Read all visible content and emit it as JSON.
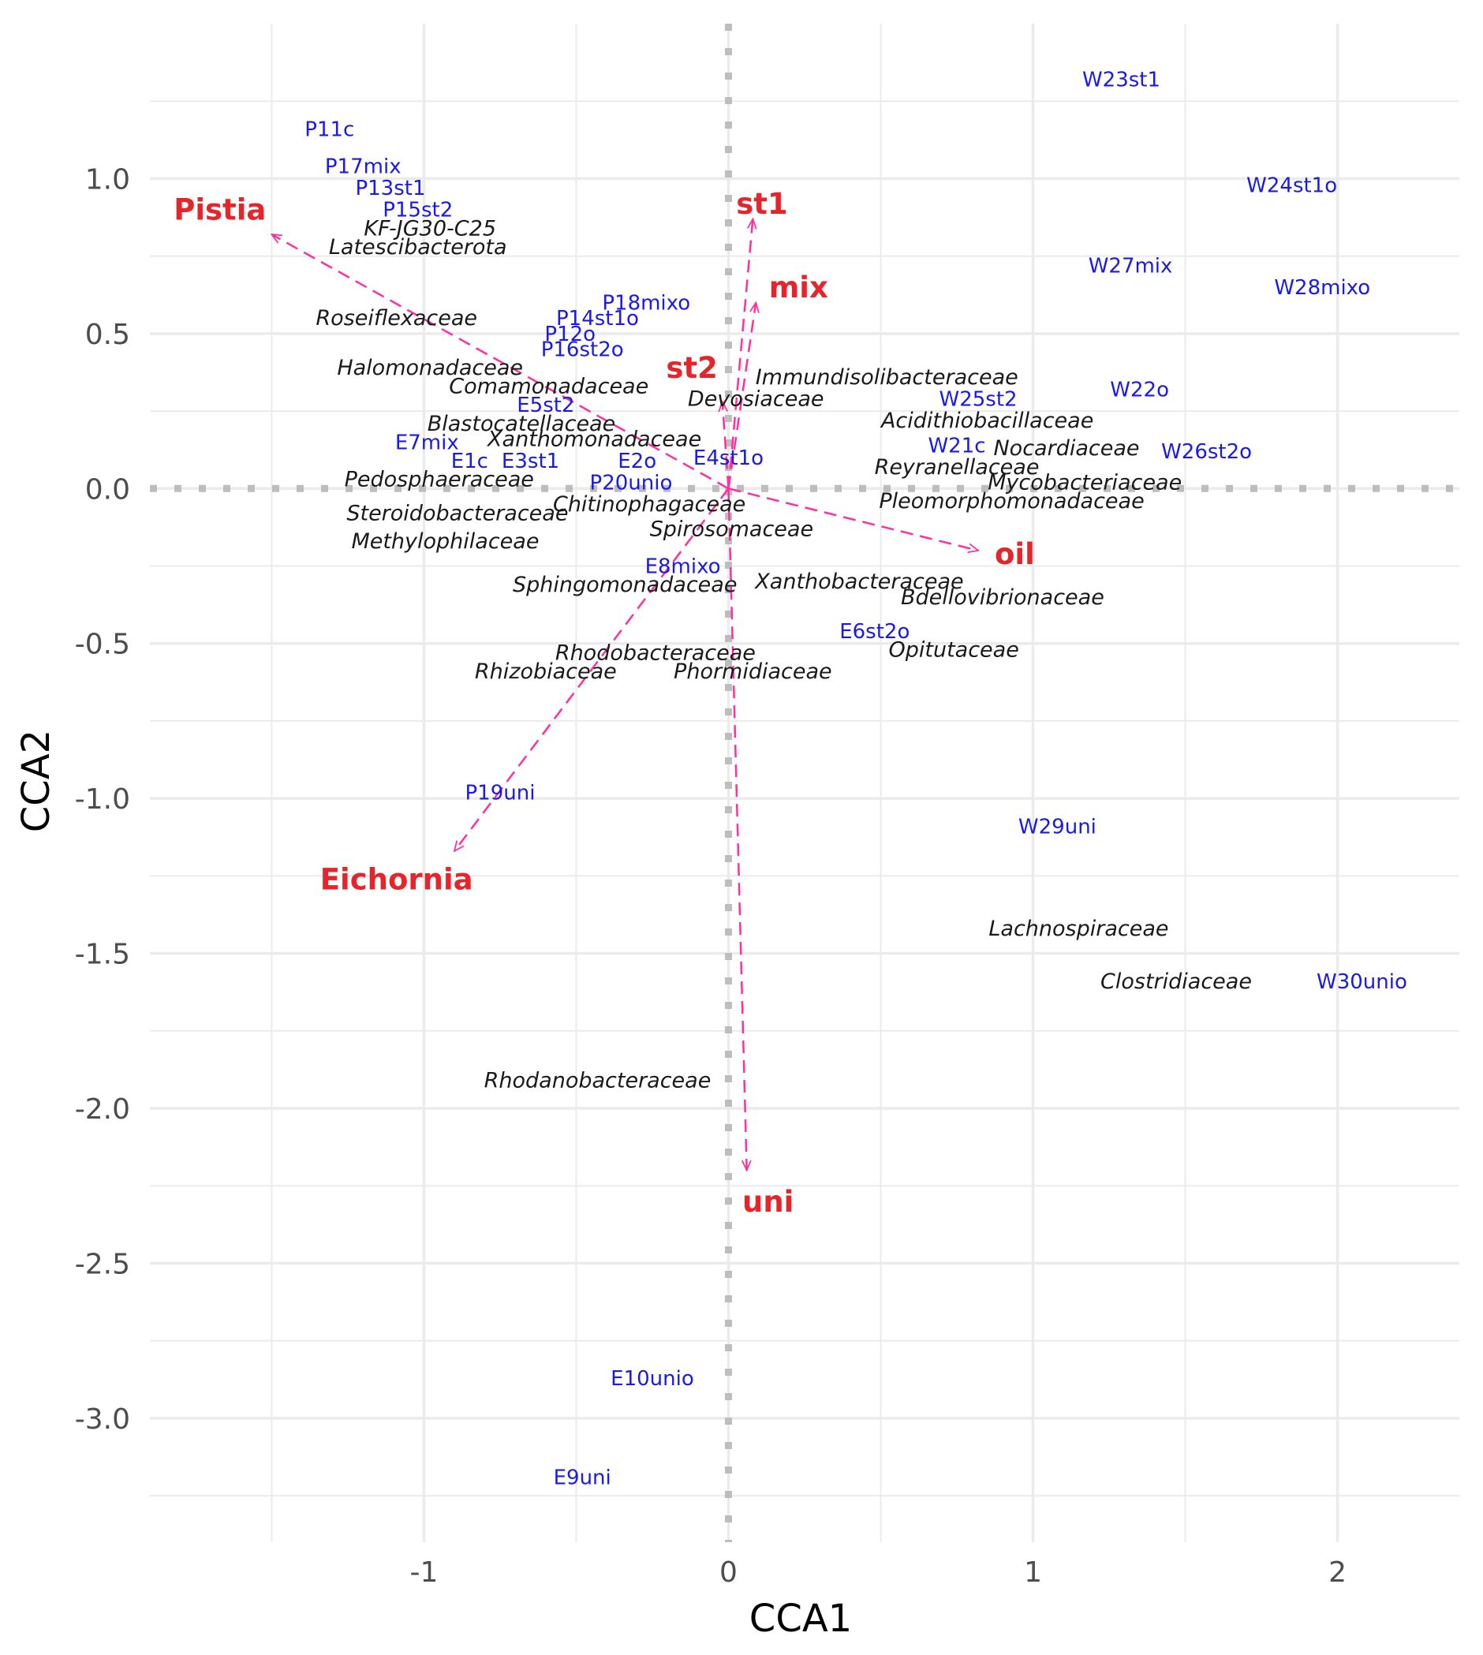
{
  "chart_data": {
    "type": "scatter",
    "xlabel": "CCA1",
    "ylabel": "CCA2",
    "xlim": [
      -1.9,
      2.4
    ],
    "ylim": [
      -3.4,
      1.5
    ],
    "x_ticks": [
      -1,
      0,
      1,
      2
    ],
    "x_tick_labels": [
      "-1",
      "0",
      "1",
      "2"
    ],
    "y_ticks": [
      1.0,
      0.5,
      0.0,
      -0.5,
      -1.0,
      -1.5,
      -2.0,
      -2.5,
      -3.0
    ],
    "y_tick_labels": [
      "1.0",
      "0.5",
      "0.0",
      "-0.5",
      "-1.0",
      "-1.5",
      "-2.0",
      "-2.5",
      "-3.0"
    ],
    "grid": true,
    "reference_lines": {
      "x": 0,
      "y": 0,
      "style": "dotted"
    },
    "colors": {
      "sites": "#1a1ae6",
      "families": "#1a1a1a",
      "vectors": "#e8242b",
      "arrows": "#ff2fa0",
      "grid": "#ebebeb",
      "ref": "#bdbdbd"
    },
    "sites": [
      {
        "label": "W23st1",
        "x": 1.29,
        "y": 1.32
      },
      {
        "label": "P11c",
        "x": -1.31,
        "y": 1.16
      },
      {
        "label": "P17mix",
        "x": -1.2,
        "y": 1.04
      },
      {
        "label": "W24st1o",
        "x": 1.85,
        "y": 0.98
      },
      {
        "label": "P13st1",
        "x": -1.11,
        "y": 0.97
      },
      {
        "label": "P15st2",
        "x": -1.02,
        "y": 0.9
      },
      {
        "label": "W27mix",
        "x": 1.32,
        "y": 0.72
      },
      {
        "label": "W28mixo",
        "x": 1.95,
        "y": 0.65
      },
      {
        "label": "P18mixo",
        "x": -0.27,
        "y": 0.6
      },
      {
        "label": "P14st1o",
        "x": -0.43,
        "y": 0.55
      },
      {
        "label": "P12o",
        "x": -0.52,
        "y": 0.5
      },
      {
        "label": "P16st2o",
        "x": -0.48,
        "y": 0.45
      },
      {
        "label": "W22o",
        "x": 1.35,
        "y": 0.32
      },
      {
        "label": "W25st2",
        "x": 0.82,
        "y": 0.29
      },
      {
        "label": "E5st2",
        "x": -0.6,
        "y": 0.27
      },
      {
        "label": "W21c",
        "x": 0.75,
        "y": 0.14
      },
      {
        "label": "E7mix",
        "x": -0.99,
        "y": 0.15
      },
      {
        "label": "W26st2o",
        "x": 1.57,
        "y": 0.12
      },
      {
        "label": "E1c",
        "x": -0.85,
        "y": 0.09
      },
      {
        "label": "E3st1",
        "x": -0.65,
        "y": 0.09
      },
      {
        "label": "E2o",
        "x": -0.3,
        "y": 0.09
      },
      {
        "label": "E4st1o",
        "x": 0.0,
        "y": 0.1
      },
      {
        "label": "P20unio",
        "x": -0.32,
        "y": 0.02
      },
      {
        "label": "E8mixo",
        "x": -0.15,
        "y": -0.25
      },
      {
        "label": "E6st2o",
        "x": 0.48,
        "y": -0.46
      },
      {
        "label": "P19uni",
        "x": -0.75,
        "y": -0.98
      },
      {
        "label": "W29uni",
        "x": 1.08,
        "y": -1.09
      },
      {
        "label": "W30unio",
        "x": 2.08,
        "y": -1.59
      },
      {
        "label": "E10unio",
        "x": -0.25,
        "y": -2.87
      },
      {
        "label": "E9uni",
        "x": -0.48,
        "y": -3.19
      }
    ],
    "families": [
      {
        "label": "KF-JG30-C25",
        "x": -0.98,
        "y": 0.84
      },
      {
        "label": "Latescibacterota",
        "x": -1.02,
        "y": 0.78
      },
      {
        "label": "Roseiflexaceae",
        "x": -1.09,
        "y": 0.55
      },
      {
        "label": "Halomonadaceae",
        "x": -0.98,
        "y": 0.39
      },
      {
        "label": "Immundisolibacteraceae",
        "x": 0.52,
        "y": 0.36
      },
      {
        "label": "Comamonadaceae",
        "x": -0.59,
        "y": 0.33
      },
      {
        "label": "Devosiaceae",
        "x": 0.09,
        "y": 0.29
      },
      {
        "label": "Acidithiobacillaceae",
        "x": 0.85,
        "y": 0.22
      },
      {
        "label": "Blastocatellaceae",
        "x": -0.68,
        "y": 0.21
      },
      {
        "label": "Xanthomonadaceae",
        "x": -0.44,
        "y": 0.16
      },
      {
        "label": "Nocardiaceae",
        "x": 1.11,
        "y": 0.13
      },
      {
        "label": "Reyranellaceae",
        "x": 0.75,
        "y": 0.07
      },
      {
        "label": "Pedosphaeraceae",
        "x": -0.95,
        "y": 0.03
      },
      {
        "label": "Mycobacteriaceae",
        "x": 1.17,
        "y": 0.02
      },
      {
        "label": "Chitinophagaceae",
        "x": -0.26,
        "y": -0.05
      },
      {
        "label": "Pleomorphomonadaceae",
        "x": 0.93,
        "y": -0.04
      },
      {
        "label": "Steroidobacteraceae",
        "x": -0.89,
        "y": -0.08
      },
      {
        "label": "Spirosomaceae",
        "x": 0.01,
        "y": -0.13
      },
      {
        "label": "Methylophilaceae",
        "x": -0.93,
        "y": -0.17
      },
      {
        "label": "Xanthobacteraceae",
        "x": 0.43,
        "y": -0.3
      },
      {
        "label": "Sphingomonadaceae",
        "x": -0.34,
        "y": -0.31
      },
      {
        "label": "Bdellovibrionaceae",
        "x": 0.9,
        "y": -0.35
      },
      {
        "label": "Rhodobacteraceae",
        "x": -0.24,
        "y": -0.53
      },
      {
        "label": "Opitutaceae",
        "x": 0.74,
        "y": -0.52
      },
      {
        "label": "Phormidiaceae",
        "x": 0.08,
        "y": -0.59
      },
      {
        "label": "Rhizobiaceae",
        "x": -0.6,
        "y": -0.59
      },
      {
        "label": "Lachnospiraceae",
        "x": 1.15,
        "y": -1.42
      },
      {
        "label": "Clostridiaceae",
        "x": 1.47,
        "y": -1.59
      },
      {
        "label": "Rhodanobacteraceae",
        "x": -0.43,
        "y": -1.91
      }
    ],
    "vectors": [
      {
        "label": "Pistia",
        "x": -1.5,
        "y": 0.82,
        "label_x": -1.67,
        "label_y": 0.9,
        "label_anchor": "middle"
      },
      {
        "label": "st1",
        "x": 0.08,
        "y": 0.87,
        "label_x": 0.11,
        "label_y": 0.92,
        "label_anchor": "middle"
      },
      {
        "label": "mix",
        "x": 0.09,
        "y": 0.6,
        "label_x": 0.23,
        "label_y": 0.65,
        "label_anchor": "middle"
      },
      {
        "label": "st2",
        "x": -0.02,
        "y": 0.28,
        "label_x": -0.12,
        "label_y": 0.39,
        "label_anchor": "middle"
      },
      {
        "label": "oil",
        "x": 0.82,
        "y": -0.2,
        "label_x": 0.94,
        "label_y": -0.21,
        "label_anchor": "middle"
      },
      {
        "label": "Eichornia",
        "x": -0.9,
        "y": -1.17,
        "label_x": -1.09,
        "label_y": -1.26,
        "label_anchor": "middle"
      },
      {
        "label": "uni",
        "x": 0.06,
        "y": -2.2,
        "label_x": 0.13,
        "label_y": -2.3,
        "label_anchor": "middle"
      }
    ]
  }
}
